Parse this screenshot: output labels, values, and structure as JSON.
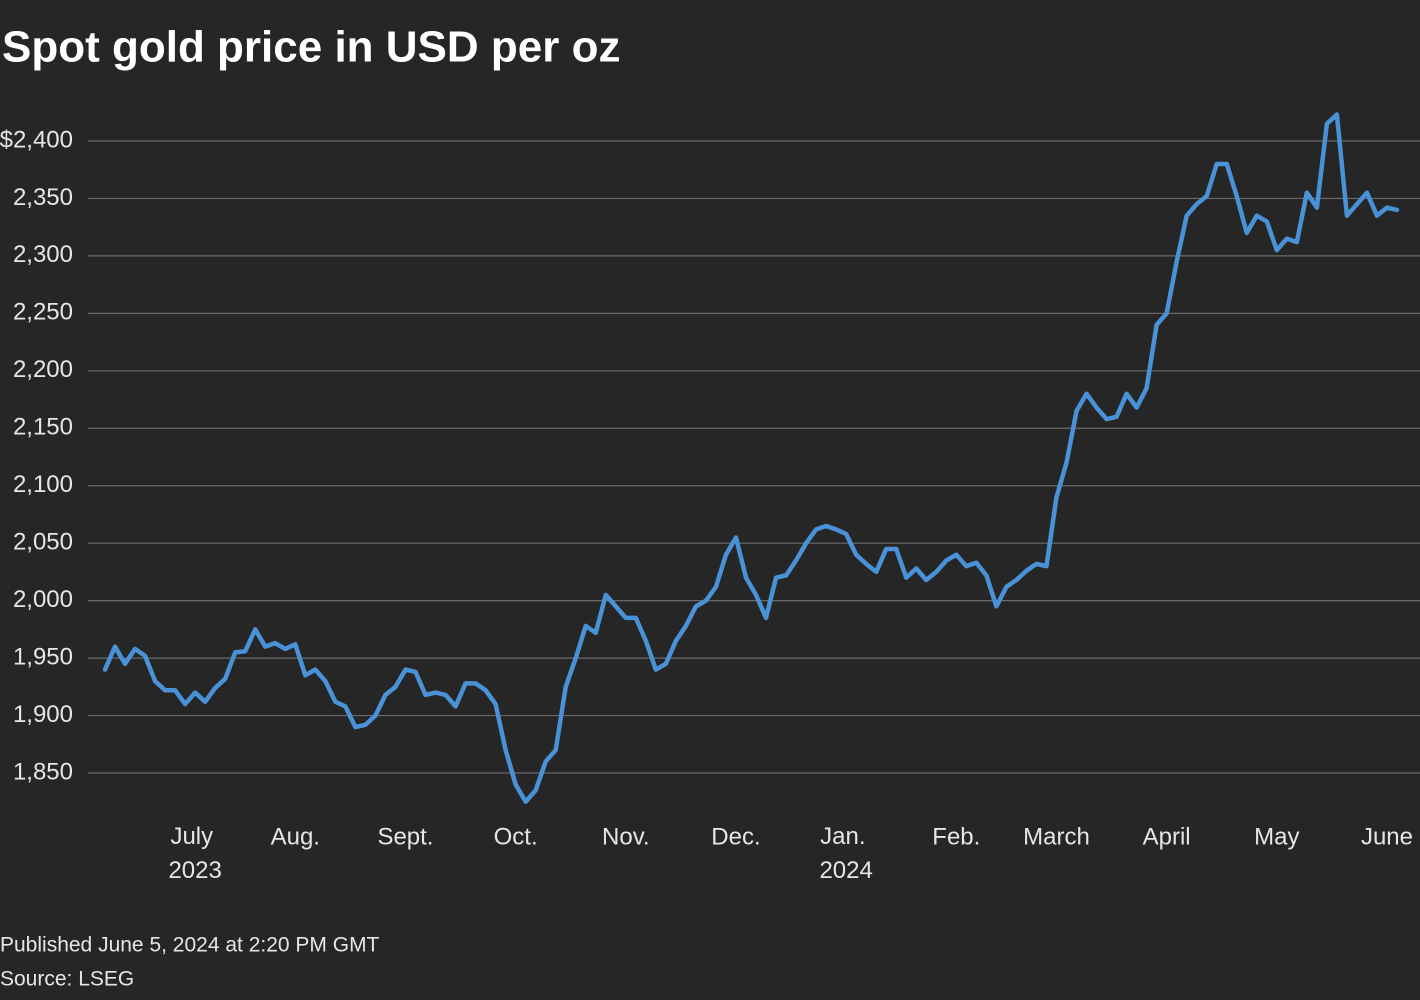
{
  "chart_data": {
    "type": "line",
    "title": "Spot gold price in USD per oz",
    "published": "Published June 5, 2024 at 2:20 PM GMT",
    "source": "Source: LSEG",
    "categories": [
      null,
      null,
      null,
      null,
      null,
      null,
      null,
      null,
      null,
      "July 2023",
      null,
      null,
      null,
      null,
      null,
      null,
      null,
      null,
      null,
      "Aug.",
      null,
      null,
      null,
      null,
      null,
      null,
      null,
      null,
      null,
      null,
      "Sept.",
      null,
      null,
      null,
      null,
      null,
      null,
      null,
      null,
      null,
      null,
      "Oct.",
      null,
      null,
      null,
      null,
      null,
      null,
      null,
      null,
      null,
      null,
      "Nov.",
      null,
      null,
      null,
      null,
      null,
      null,
      null,
      null,
      null,
      null,
      "Dec.",
      null,
      null,
      null,
      null,
      null,
      null,
      null,
      null,
      null,
      null,
      "Jan. 2024",
      null,
      null,
      null,
      null,
      null,
      null,
      null,
      null,
      null,
      null,
      "Feb.",
      null,
      null,
      null,
      null,
      null,
      null,
      null,
      null,
      null,
      "March",
      null,
      null,
      null,
      null,
      null,
      null,
      null,
      null,
      null,
      null,
      "April",
      null,
      null,
      null,
      null,
      null,
      null,
      null,
      null,
      null,
      null,
      "May",
      null,
      null,
      null,
      null,
      null,
      null,
      null,
      null,
      null,
      null,
      "June",
      null
    ],
    "series": [
      {
        "name": "Spot gold",
        "color": "#4a92d8",
        "values": [
          1940,
          1960,
          1945,
          1958,
          1952,
          1930,
          1922,
          1922,
          1910,
          1920,
          1912,
          1924,
          1932,
          1955,
          1956,
          1975,
          1960,
          1963,
          1958,
          1962,
          1935,
          1940,
          1930,
          1912,
          1908,
          1890,
          1892,
          1900,
          1918,
          1925,
          1940,
          1938,
          1918,
          1920,
          1918,
          1908,
          1928,
          1928,
          1922,
          1910,
          1870,
          1840,
          1825,
          1835,
          1860,
          1870,
          1925,
          1950,
          1978,
          1972,
          2005,
          1995,
          1985,
          1985,
          1965,
          1940,
          1945,
          1965,
          1978,
          1995,
          2000,
          2012,
          2040,
          2055,
          2020,
          2005,
          1985,
          2020,
          2022,
          2035,
          2050,
          2062,
          2065,
          2062,
          2058,
          2040,
          2032,
          2025,
          2045,
          2045,
          2020,
          2028,
          2018,
          2025,
          2035,
          2040,
          2030,
          2033,
          2022,
          1995,
          2012,
          2018,
          2026,
          2032,
          2030,
          2090,
          2120,
          2165,
          2180,
          2168,
          2158,
          2160,
          2180,
          2168,
          2185,
          2240,
          2250,
          2295,
          2335,
          2345,
          2352,
          2380,
          2380,
          2352,
          2320,
          2335,
          2330,
          2305,
          2315,
          2312,
          2355,
          2342,
          2415,
          2423,
          2335,
          2345,
          2355,
          2335,
          2342,
          2340
        ]
      }
    ],
    "ylim": [
      1810,
      2430
    ],
    "yticks": [
      {
        "value": 1850,
        "label": "1,850"
      },
      {
        "value": 1900,
        "label": "1,900"
      },
      {
        "value": 1950,
        "label": "1,950"
      },
      {
        "value": 2000,
        "label": "2,000"
      },
      {
        "value": 2050,
        "label": "2,050"
      },
      {
        "value": 2100,
        "label": "2,100"
      },
      {
        "value": 2150,
        "label": "2,150"
      },
      {
        "value": 2200,
        "label": "2,200"
      },
      {
        "value": 2250,
        "label": "2,250"
      },
      {
        "value": 2300,
        "label": "2,300"
      },
      {
        "value": 2350,
        "label": "2,350"
      },
      {
        "value": 2400,
        "label": "$2,400"
      }
    ],
    "grid": true
  }
}
